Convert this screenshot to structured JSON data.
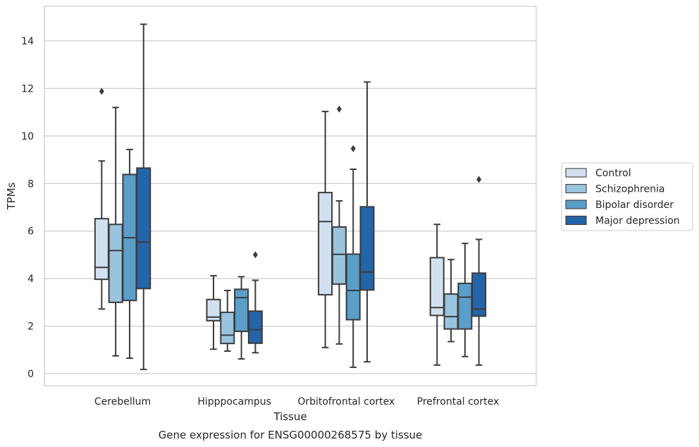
{
  "chart_data": {
    "type": "box",
    "caption": "Gene expression for ENSG00000268575 by tissue",
    "xlabel": "Tissue",
    "ylabel": "TPMs",
    "ylim": [
      -0.5,
      15.2
    ],
    "yticks": [
      0,
      2,
      4,
      6,
      8,
      10,
      12,
      14
    ],
    "grid": "horizontal",
    "legend_position": "right",
    "categories": [
      "Cerebellum",
      "Hipppocampus",
      "Orbitofrontal cortex",
      "Prefrontal cortex"
    ],
    "series": [
      {
        "name": "Control",
        "color": "#d2e1f0",
        "boxes": [
          {
            "whislo": 2.72,
            "q1": 3.97,
            "med": 4.47,
            "q3": 6.52,
            "whishi": 8.95,
            "fliers": [
              11.88
            ]
          },
          {
            "whislo": 1.03,
            "q1": 2.23,
            "med": 2.38,
            "q3": 3.12,
            "whishi": 4.12,
            "fliers": []
          },
          {
            "whislo": 1.1,
            "q1": 3.32,
            "med": 6.4,
            "q3": 7.62,
            "whishi": 11.03,
            "fliers": []
          },
          {
            "whislo": 0.36,
            "q1": 2.45,
            "med": 2.78,
            "q3": 4.88,
            "whishi": 6.28,
            "fliers": []
          }
        ]
      },
      {
        "name": "Schizophrenia",
        "color": "#9ac4de",
        "boxes": [
          {
            "whislo": 0.75,
            "q1": 3.0,
            "med": 5.18,
            "q3": 6.28,
            "whishi": 11.2,
            "fliers": []
          },
          {
            "whislo": 0.95,
            "q1": 1.27,
            "med": 1.62,
            "q3": 2.58,
            "whishi": 3.5,
            "fliers": []
          },
          {
            "whislo": 1.25,
            "q1": 3.77,
            "med": 5.02,
            "q3": 6.17,
            "whishi": 7.27,
            "fliers": [
              11.13
            ]
          },
          {
            "whislo": 1.35,
            "q1": 1.88,
            "med": 2.4,
            "q3": 3.35,
            "whishi": 4.8,
            "fliers": []
          }
        ]
      },
      {
        "name": "Bipolar disorder",
        "color": "#5a9ec9",
        "boxes": [
          {
            "whislo": 0.65,
            "q1": 3.08,
            "med": 5.72,
            "q3": 8.38,
            "whishi": 9.43,
            "fliers": []
          },
          {
            "whislo": 0.62,
            "q1": 1.78,
            "med": 3.2,
            "q3": 3.55,
            "whishi": 4.08,
            "fliers": []
          },
          {
            "whislo": 0.27,
            "q1": 2.27,
            "med": 3.5,
            "q3": 5.03,
            "whishi": 8.6,
            "fliers": [
              9.47
            ]
          },
          {
            "whislo": 0.72,
            "q1": 1.88,
            "med": 3.22,
            "q3": 3.8,
            "whishi": 5.48,
            "fliers": []
          }
        ]
      },
      {
        "name": "Major depression",
        "color": "#2464a8",
        "boxes": [
          {
            "whislo": 0.18,
            "q1": 3.58,
            "med": 5.53,
            "q3": 8.65,
            "whishi": 14.7,
            "fliers": []
          },
          {
            "whislo": 0.88,
            "q1": 1.28,
            "med": 1.85,
            "q3": 2.63,
            "whishi": 3.93,
            "fliers": [
              5.0
            ]
          },
          {
            "whislo": 0.5,
            "q1": 3.52,
            "med": 4.28,
            "q3": 7.02,
            "whishi": 12.27,
            "fliers": []
          },
          {
            "whislo": 0.36,
            "q1": 2.42,
            "med": 2.72,
            "q3": 4.23,
            "whishi": 5.65,
            "fliers": [
              8.17
            ]
          }
        ]
      }
    ]
  }
}
